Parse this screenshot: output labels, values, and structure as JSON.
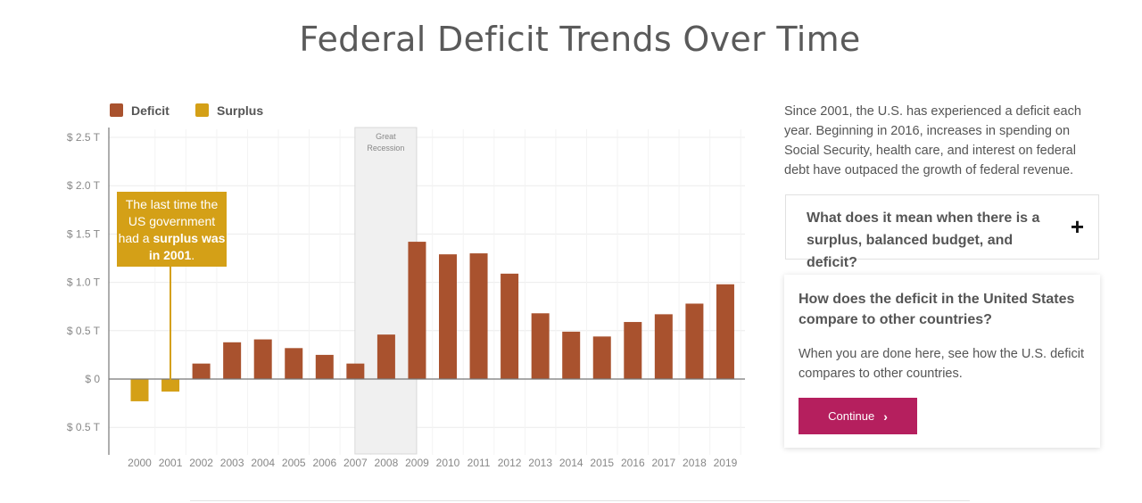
{
  "page": {
    "title": "Federal Deficit Trends Over Time"
  },
  "legend": [
    {
      "label": "Deficit",
      "color": "#a9522e"
    },
    {
      "label": "Surplus",
      "color": "#d4a017"
    }
  ],
  "recession": {
    "label_line1": "Great",
    "label_line2": "Recession",
    "start": "2007",
    "end": "2009"
  },
  "callout": {
    "text_pre": "The last time the US government had a ",
    "text_bold": "surplus was in 2001",
    "text_post": ".",
    "year": "2001"
  },
  "sidebar": {
    "intro": "Since 2001, the U.S. has experienced a deficit each year. Beginning in 2016, increases in spending on Social Security, health care, and interest on federal debt have outpaced the growth of federal revenue.",
    "faq_question": "What does it mean when there is a surplus, balanced budget, and deficit?",
    "faq_icon": "plus-icon",
    "card_title": "How does the deficit in the United States compare to other countries?",
    "card_body": "When you are done here, see how the U.S. deficit compares to other countries.",
    "button_label": "Continue",
    "button_color": "#b51f5e"
  },
  "chart_data": {
    "type": "bar",
    "categories": [
      "2000",
      "2001",
      "2002",
      "2003",
      "2004",
      "2005",
      "2006",
      "2007",
      "2008",
      "2009",
      "2010",
      "2011",
      "2012",
      "2013",
      "2014",
      "2015",
      "2016",
      "2017",
      "2018",
      "2019"
    ],
    "values": [
      -0.23,
      -0.13,
      0.16,
      0.38,
      0.41,
      0.32,
      0.25,
      0.16,
      0.46,
      1.42,
      1.29,
      1.3,
      1.09,
      0.68,
      0.49,
      0.44,
      0.59,
      0.67,
      0.78,
      0.98
    ],
    "units": "T",
    "ylim": [
      -0.75,
      2.5
    ],
    "y_ticks": [
      2.5,
      2.0,
      1.5,
      1.0,
      0.5,
      0,
      -0.5
    ],
    "y_tick_labels": [
      "$ 2.5 T",
      "$ 2.0 T",
      "$ 1.5 T",
      "$ 1.0 T",
      "$ 0.5 T",
      "$ 0",
      "$ 0.5 T"
    ],
    "deficit_color": "#a9522e",
    "surplus_color": "#d4a017",
    "grid": true,
    "legend_position": "top-left"
  }
}
